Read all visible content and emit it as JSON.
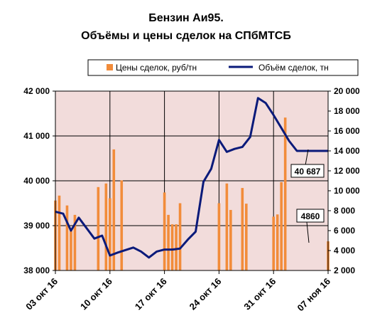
{
  "chart_data": {
    "type": "bar+line",
    "title_lines": [
      "Бензин Аи95.",
      "Объёмы и цены сделок на СПбМТСБ"
    ],
    "legend": {
      "placement": "top",
      "entries": [
        {
          "label": "Цены сделок, руб/тн",
          "type": "bar",
          "color": "#F28C3A"
        },
        {
          "label": "Объём сделок, тн",
          "type": "line",
          "color": "#0A1A7A"
        }
      ]
    },
    "x": {
      "tick_labels": [
        "03 окт 16",
        "10 окт 16",
        "17 окт 16",
        "24 окт 16",
        "31 окт 16",
        "07 ноя 16"
      ],
      "range_days": [
        0,
        35
      ]
    },
    "y_left": {
      "label": "",
      "ylim": [
        38000,
        42000
      ],
      "ticks": [
        38000,
        39000,
        40000,
        41000,
        42000
      ],
      "tick_labels": [
        "38 000",
        "39 000",
        "40 000",
        "41 000",
        "42 000"
      ]
    },
    "y_right": {
      "label": "",
      "ylim": [
        2000,
        20000
      ],
      "ticks": [
        2000,
        4000,
        6000,
        8000,
        10000,
        12000,
        14000,
        16000,
        18000,
        20000
      ],
      "tick_labels": [
        "2 000",
        "4 000",
        "6 000",
        "8 000",
        "10 000",
        "12 000",
        "14 000",
        "16 000",
        "18 000",
        "20 000"
      ]
    },
    "grid": {
      "vertical": true,
      "horizontal": true
    },
    "plot_background": "#F2DCDB",
    "series": [
      {
        "name": "Цены сделок, руб/тн",
        "axis": "left",
        "type": "bar",
        "color": "#F28C3A",
        "x": [
          0,
          0.5,
          1.5,
          2,
          2.5,
          3,
          5,
          5.5,
          6.5,
          7,
          7.5,
          8.5,
          9,
          9.5,
          10,
          10.5,
          11,
          12,
          12.5,
          13,
          14,
          14.5,
          15,
          15.5,
          16,
          16.5,
          17,
          17.5,
          18,
          18.5,
          19,
          21,
          21.5,
          22,
          22.5,
          24,
          24.5,
          25,
          25.5,
          26,
          26.5,
          28,
          28.5,
          29,
          29.5,
          30,
          31,
          31.5,
          32,
          32.5,
          33,
          33.5,
          34,
          34.5,
          35
        ],
        "values": [
          39560,
          39670,
          39450,
          38910,
          39240,
          38000,
          38000,
          39860,
          39940,
          39610,
          40700,
          40010,
          38000,
          38000,
          38000,
          38000,
          38000,
          38000,
          38000,
          38000,
          39740,
          39240,
          39030,
          39030,
          39500,
          38000,
          38000,
          38000,
          38000,
          38000,
          38000,
          39500,
          38000,
          39940,
          39350,
          39840,
          39490,
          38000,
          38000,
          38000,
          38000,
          39200,
          39250,
          39970,
          41410,
          38000,
          38000,
          38000,
          38000,
          38000,
          38000,
          38000,
          38000,
          38000,
          38650
        ]
      },
      {
        "name": "Объём сделок, тн",
        "axis": "right",
        "type": "line",
        "color": "#0A1A7A",
        "x": [
          0,
          1,
          2,
          3,
          5,
          6,
          7,
          8,
          10,
          11,
          12,
          13,
          14,
          15,
          16,
          17,
          18,
          19,
          20,
          21,
          22,
          23,
          24,
          25,
          26,
          27,
          28,
          29,
          30,
          31,
          32,
          33,
          34,
          35
        ],
        "values": [
          7900,
          7700,
          6000,
          7300,
          5200,
          5500,
          3500,
          3800,
          4300,
          3900,
          3300,
          3900,
          4100,
          4100,
          4200,
          5100,
          5900,
          10900,
          12200,
          15100,
          13900,
          14200,
          14400,
          15400,
          19300,
          18800,
          17600,
          16300,
          15000,
          14000,
          14000,
          14000,
          14000,
          14000
        ]
      }
    ],
    "callouts": [
      {
        "text": "40 687"
      },
      {
        "text": "4860"
      }
    ]
  }
}
